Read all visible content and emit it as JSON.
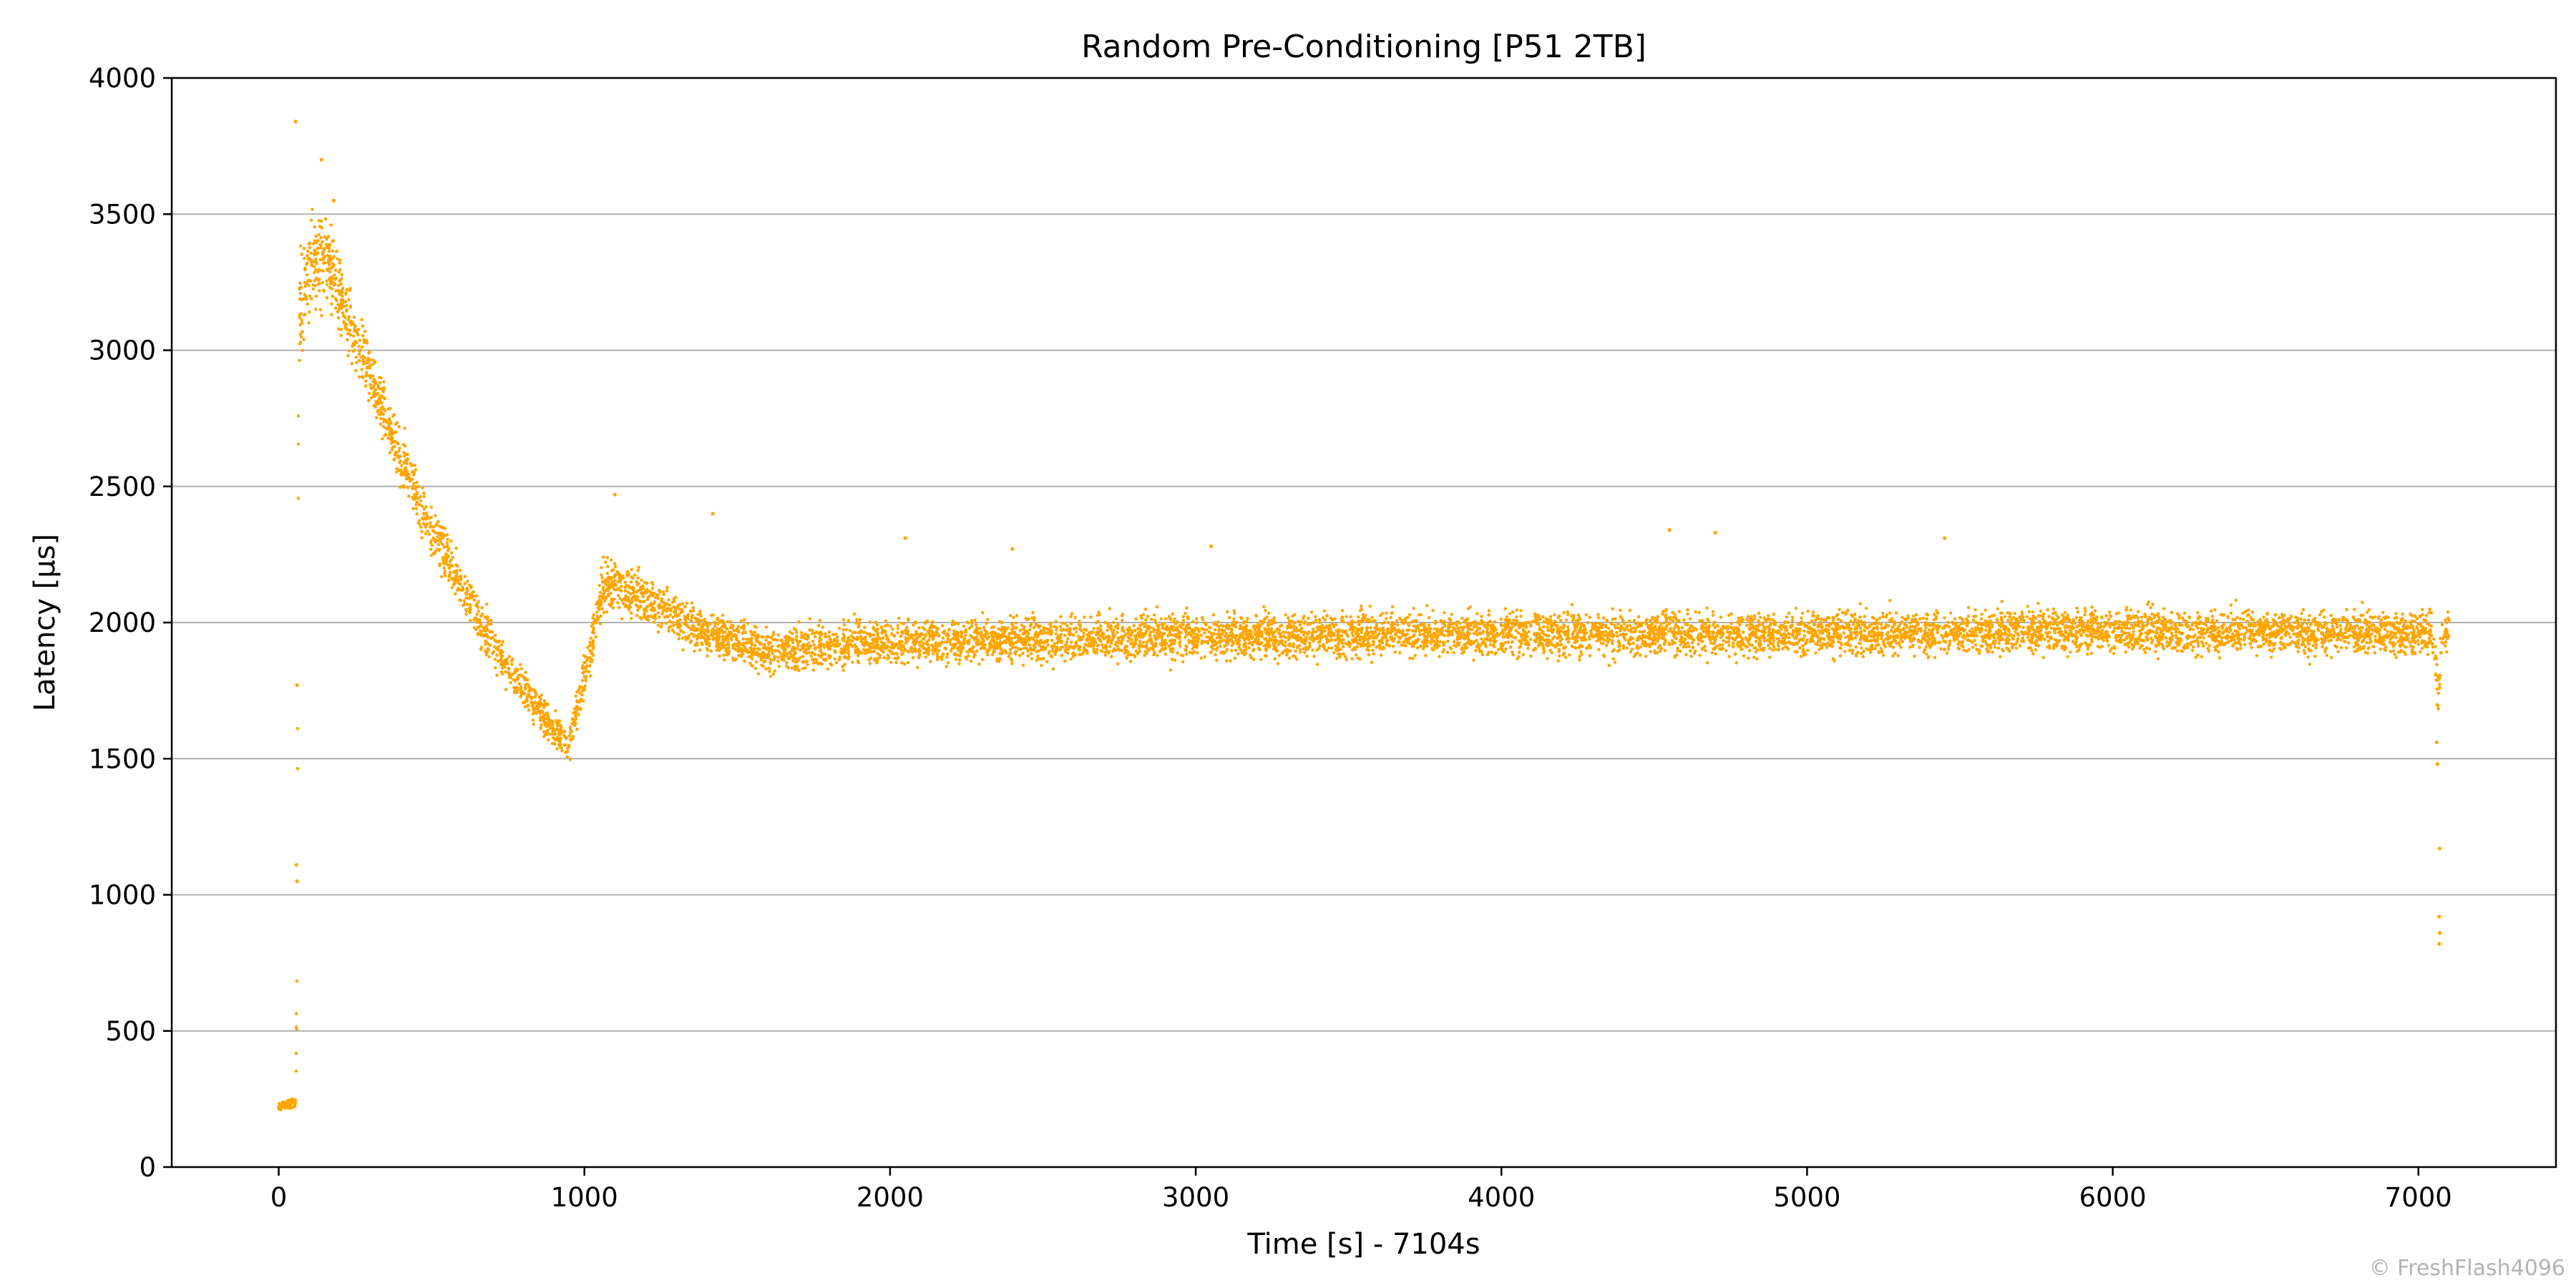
{
  "chart_data": {
    "type": "scatter",
    "title": "Random Pre-Conditioning [P51 2TB]",
    "xlabel": "Time [s] - 7104s",
    "ylabel": "Latency [µs]",
    "xlim": [
      -350,
      7450
    ],
    "ylim": [
      0,
      4000
    ],
    "xticks": [
      0,
      1000,
      2000,
      3000,
      4000,
      5000,
      6000,
      7000
    ],
    "yticks": [
      0,
      500,
      1000,
      1500,
      2000,
      2500,
      3000,
      3500,
      4000
    ],
    "grid": "horizontal",
    "color": "#FFA500",
    "series": [
      {
        "band_profile": [
          {
            "x": 0,
            "y": 220,
            "spread": 25
          },
          {
            "x": 55,
            "y": 240,
            "spread": 40
          },
          {
            "x": 60,
            "y": 700,
            "spread": 380
          },
          {
            "x": 65,
            "y": 3150,
            "spread": 320
          },
          {
            "x": 100,
            "y": 3300,
            "spread": 300
          },
          {
            "x": 150,
            "y": 3350,
            "spread": 280
          },
          {
            "x": 200,
            "y": 3200,
            "spread": 230
          },
          {
            "x": 300,
            "y": 2900,
            "spread": 200
          },
          {
            "x": 400,
            "y": 2600,
            "spread": 180
          },
          {
            "x": 500,
            "y": 2350,
            "spread": 170
          },
          {
            "x": 600,
            "y": 2120,
            "spread": 150
          },
          {
            "x": 700,
            "y": 1920,
            "spread": 140
          },
          {
            "x": 800,
            "y": 1760,
            "spread": 130
          },
          {
            "x": 900,
            "y": 1600,
            "spread": 110
          },
          {
            "x": 950,
            "y": 1560,
            "spread": 110
          },
          {
            "x": 1000,
            "y": 1800,
            "spread": 170
          },
          {
            "x": 1060,
            "y": 2120,
            "spread": 170
          },
          {
            "x": 1100,
            "y": 2150,
            "spread": 160
          },
          {
            "x": 1200,
            "y": 2080,
            "spread": 150
          },
          {
            "x": 1400,
            "y": 1960,
            "spread": 140
          },
          {
            "x": 1600,
            "y": 1900,
            "spread": 140
          },
          {
            "x": 2000,
            "y": 1930,
            "spread": 140
          },
          {
            "x": 3000,
            "y": 1950,
            "spread": 140
          },
          {
            "x": 4000,
            "y": 1960,
            "spread": 140
          },
          {
            "x": 5000,
            "y": 1960,
            "spread": 140
          },
          {
            "x": 6000,
            "y": 1970,
            "spread": 140
          },
          {
            "x": 7050,
            "y": 1960,
            "spread": 140
          },
          {
            "x": 7065,
            "y": 1700,
            "spread": 200
          },
          {
            "x": 7075,
            "y": 1950,
            "spread": 150
          },
          {
            "x": 7100,
            "y": 1950,
            "spread": 150
          }
        ],
        "outliers": [
          {
            "x": 55,
            "y": 3840
          },
          {
            "x": 140,
            "y": 3700
          },
          {
            "x": 180,
            "y": 3550
          },
          {
            "x": 60,
            "y": 1770
          },
          {
            "x": 60,
            "y": 1050
          },
          {
            "x": 58,
            "y": 1110
          },
          {
            "x": 1100,
            "y": 2470
          },
          {
            "x": 1420,
            "y": 2400
          },
          {
            "x": 2050,
            "y": 2310
          },
          {
            "x": 2400,
            "y": 2270
          },
          {
            "x": 3050,
            "y": 2280
          },
          {
            "x": 4550,
            "y": 2340
          },
          {
            "x": 4700,
            "y": 2330
          },
          {
            "x": 5450,
            "y": 2310
          },
          {
            "x": 7070,
            "y": 1170
          },
          {
            "x": 7068,
            "y": 920
          },
          {
            "x": 7068,
            "y": 820
          },
          {
            "x": 7070,
            "y": 860
          },
          {
            "x": 7060,
            "y": 1560
          },
          {
            "x": 7062,
            "y": 1480
          }
        ]
      }
    ]
  },
  "watermark": "© FreshFlash4096"
}
